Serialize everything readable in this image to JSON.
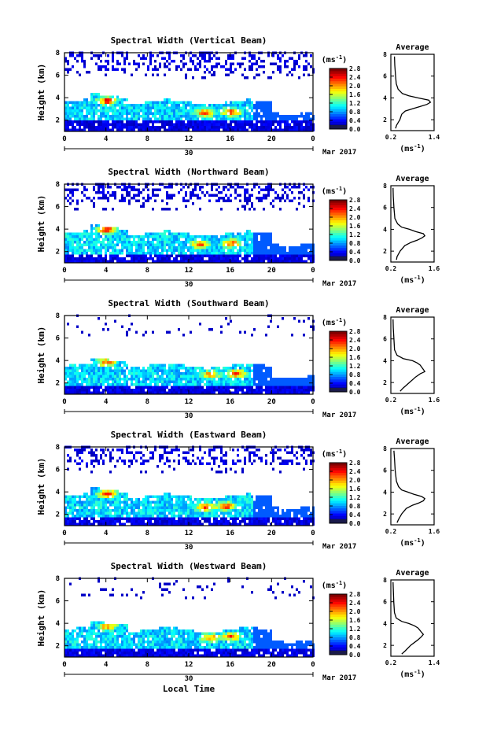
{
  "chart_data": [
    {
      "type": "heatmap",
      "title": "Spectral Width (Vertical Beam)",
      "ylabel": "Height (km)",
      "x_ticks": [
        "0",
        "4",
        "8",
        "12",
        "16",
        "20",
        "0"
      ],
      "y_ticks": [
        "2",
        "4",
        "6",
        "8"
      ],
      "date_marker": "30",
      "date_label": "Mar 2017",
      "ylim": [
        1,
        8
      ],
      "xlim": [
        0,
        24
      ],
      "colorbar": {
        "unit": "(ms",
        "unit_exp": "-1",
        "unit_close": ")",
        "ticks": [
          "0.0",
          "0.4",
          "0.8",
          "1.2",
          "1.6",
          "2.0",
          "2.4",
          "2.8"
        ],
        "range": [
          0,
          2.8
        ]
      },
      "cloud": {
        "top_km": 3.5,
        "bottom_km": 1.6,
        "hotspots": [
          [
            4,
            3.6,
            2.6
          ],
          [
            13.5,
            2.5,
            2.4
          ],
          [
            16,
            2.6,
            2.5
          ]
        ],
        "upper_echo": true
      },
      "average": {
        "title": "Average",
        "x_ticks": [
          "0.2",
          "1.4"
        ],
        "xlim": [
          0.2,
          1.4
        ],
        "y_ticks": [
          "2",
          "4",
          "6",
          "8"
        ],
        "xlabel": "(ms",
        "xlabel_exp": "-1",
        "xlabel_close": ")",
        "profile": [
          [
            1.2,
            0.33
          ],
          [
            1.5,
            0.36
          ],
          [
            2.0,
            0.45
          ],
          [
            2.5,
            0.5
          ],
          [
            2.8,
            0.6
          ],
          [
            3.0,
            0.8
          ],
          [
            3.2,
            1.0
          ],
          [
            3.4,
            1.2
          ],
          [
            3.6,
            1.3
          ],
          [
            3.8,
            1.25
          ],
          [
            4.0,
            0.95
          ],
          [
            4.2,
            0.7
          ],
          [
            4.4,
            0.52
          ],
          [
            4.8,
            0.4
          ],
          [
            5.3,
            0.35
          ],
          [
            6.0,
            0.33
          ],
          [
            7.0,
            0.31
          ],
          [
            7.8,
            0.3
          ]
        ]
      }
    },
    {
      "type": "heatmap",
      "title": "Spectral Width (Northward Beam)",
      "ylabel": "Height (km)",
      "x_ticks": [
        "0",
        "4",
        "8",
        "12",
        "16",
        "20",
        "0"
      ],
      "y_ticks": [
        "2",
        "4",
        "6",
        "8"
      ],
      "date_marker": "30",
      "date_label": "Mar 2017",
      "ylim": [
        1,
        8
      ],
      "xlim": [
        0,
        24
      ],
      "colorbar": {
        "unit": "(ms",
        "unit_exp": "-1",
        "unit_close": ")",
        "ticks": [
          "0.0",
          "0.4",
          "0.8",
          "1.2",
          "1.6",
          "2.0",
          "2.4",
          "2.8"
        ],
        "range": [
          0,
          2.8
        ]
      },
      "cloud": {
        "top_km": 3.5,
        "bottom_km": 1.5,
        "hotspots": [
          [
            4,
            3.8,
            2.7
          ],
          [
            13,
            2.5,
            2.3
          ],
          [
            16,
            2.6,
            2.4
          ]
        ],
        "upper_echo": true
      },
      "average": {
        "title": "Average",
        "x_ticks": [
          "0.2",
          "1.6"
        ],
        "xlim": [
          0.2,
          1.6
        ],
        "y_ticks": [
          "2",
          "4",
          "6",
          "8"
        ],
        "xlabel": "(ms",
        "xlabel_exp": "-1",
        "xlabel_close": ")",
        "profile": [
          [
            1.2,
            0.38
          ],
          [
            1.5,
            0.4
          ],
          [
            2.0,
            0.5
          ],
          [
            2.5,
            0.65
          ],
          [
            2.8,
            0.85
          ],
          [
            3.0,
            1.05
          ],
          [
            3.2,
            1.2
          ],
          [
            3.4,
            1.3
          ],
          [
            3.6,
            1.25
          ],
          [
            3.8,
            1.0
          ],
          [
            4.0,
            0.8
          ],
          [
            4.2,
            0.55
          ],
          [
            4.5,
            0.42
          ],
          [
            5.0,
            0.33
          ],
          [
            6.0,
            0.3
          ],
          [
            7.0,
            0.28
          ],
          [
            7.8,
            0.27
          ]
        ]
      }
    },
    {
      "type": "heatmap",
      "title": "Spectral Width (Southward Beam)",
      "ylabel": "Height (km)",
      "x_ticks": [
        "0",
        "4",
        "8",
        "12",
        "16",
        "20",
        "0"
      ],
      "y_ticks": [
        "2",
        "4",
        "6",
        "8"
      ],
      "date_marker": "30",
      "date_label": "Mar 2017",
      "ylim": [
        1,
        8
      ],
      "xlim": [
        0,
        24
      ],
      "colorbar": {
        "unit": "(ms",
        "unit_exp": "-1",
        "unit_close": ")",
        "ticks": [
          "0.0",
          "0.4",
          "0.8",
          "1.2",
          "1.6",
          "2.0",
          "2.4",
          "2.8"
        ],
        "range": [
          0,
          2.8
        ]
      },
      "cloud": {
        "top_km": 3.4,
        "bottom_km": 1.4,
        "hotspots": [
          [
            4,
            3.7,
            2.3
          ],
          [
            14,
            2.6,
            2.2
          ],
          [
            16.5,
            2.7,
            2.5
          ]
        ],
        "upper_echo": false
      },
      "average": {
        "title": "Average",
        "x_ticks": [
          "0.2",
          "1.6"
        ],
        "xlim": [
          0.2,
          1.6
        ],
        "y_ticks": [
          "2",
          "4",
          "6",
          "8"
        ],
        "xlabel": "(ms",
        "xlabel_exp": "-1",
        "xlabel_close": ")",
        "profile": [
          [
            1.2,
            0.5
          ],
          [
            1.5,
            0.6
          ],
          [
            2.0,
            0.8
          ],
          [
            2.5,
            1.0
          ],
          [
            2.8,
            1.15
          ],
          [
            3.0,
            1.3
          ],
          [
            3.2,
            1.25
          ],
          [
            3.4,
            1.2
          ],
          [
            3.6,
            1.15
          ],
          [
            3.8,
            1.05
          ],
          [
            4.0,
            0.9
          ],
          [
            4.2,
            0.6
          ],
          [
            4.5,
            0.4
          ],
          [
            5.0,
            0.32
          ],
          [
            6.0,
            0.3
          ],
          [
            7.0,
            0.28
          ],
          [
            7.8,
            0.27
          ]
        ]
      }
    },
    {
      "type": "heatmap",
      "title": "Spectral Width (Eastward Beam)",
      "ylabel": "Height (km)",
      "x_ticks": [
        "0",
        "4",
        "8",
        "12",
        "16",
        "20",
        "0"
      ],
      "y_ticks": [
        "2",
        "4",
        "6",
        "8"
      ],
      "date_marker": "30",
      "date_label": "Mar 2017",
      "ylim": [
        1,
        8
      ],
      "xlim": [
        0,
        24
      ],
      "colorbar": {
        "unit": "(ms",
        "unit_exp": "-1",
        "unit_close": ")",
        "ticks": [
          "0.0",
          "0.4",
          "0.8",
          "1.2",
          "1.6",
          "2.0",
          "2.4",
          "2.8"
        ],
        "range": [
          0,
          2.8
        ]
      },
      "cloud": {
        "top_km": 3.5,
        "bottom_km": 1.5,
        "hotspots": [
          [
            4,
            3.7,
            2.6
          ],
          [
            13.5,
            2.5,
            2.4
          ],
          [
            15.5,
            2.6,
            2.6
          ]
        ],
        "upper_echo": true
      },
      "average": {
        "title": "Average",
        "x_ticks": [
          "0.2",
          "1.6"
        ],
        "xlim": [
          0.2,
          1.6
        ],
        "y_ticks": [
          "2",
          "4",
          "6",
          "8"
        ],
        "xlabel": "(ms",
        "xlabel_exp": "-1",
        "xlabel_close": ")",
        "profile": [
          [
            1.2,
            0.4
          ],
          [
            1.5,
            0.45
          ],
          [
            2.0,
            0.55
          ],
          [
            2.5,
            0.7
          ],
          [
            2.8,
            0.9
          ],
          [
            3.0,
            1.1
          ],
          [
            3.2,
            1.25
          ],
          [
            3.4,
            1.3
          ],
          [
            3.6,
            1.2
          ],
          [
            3.8,
            0.95
          ],
          [
            4.0,
            0.75
          ],
          [
            4.2,
            0.55
          ],
          [
            4.5,
            0.45
          ],
          [
            5.0,
            0.38
          ],
          [
            6.0,
            0.34
          ],
          [
            7.0,
            0.32
          ],
          [
            7.8,
            0.3
          ]
        ]
      }
    },
    {
      "type": "heatmap",
      "title": "Spectral Width (Westward Beam)",
      "ylabel": "Height (km)",
      "x_ticks": [
        "0",
        "4",
        "8",
        "12",
        "16",
        "20",
        "0"
      ],
      "y_ticks": [
        "2",
        "4",
        "6",
        "8"
      ],
      "date_marker": "30",
      "date_label": "Mar 2017",
      "xlabel": "Local Time",
      "ylim": [
        1,
        8
      ],
      "xlim": [
        0,
        24
      ],
      "colorbar": {
        "unit": "(ms",
        "unit_exp": "-1",
        "unit_close": ")",
        "ticks": [
          "0.0",
          "0.4",
          "0.8",
          "1.2",
          "1.6",
          "2.0",
          "2.4",
          "2.8"
        ],
        "range": [
          0,
          2.8
        ]
      },
      "cloud": {
        "top_km": 3.3,
        "bottom_km": 1.4,
        "hotspots": [
          [
            4,
            3.6,
            2.2
          ],
          [
            14,
            2.6,
            2.2
          ],
          [
            16,
            2.7,
            2.3
          ]
        ],
        "upper_echo": false
      },
      "average": {
        "title": "Average",
        "x_ticks": [
          "0.2",
          "1.4"
        ],
        "xlim": [
          0.2,
          1.4
        ],
        "y_ticks": [
          "2",
          "4",
          "6",
          "8"
        ],
        "xlabel": "(ms",
        "xlabel_exp": "-1",
        "xlabel_close": ")",
        "profile": [
          [
            1.2,
            0.5
          ],
          [
            1.5,
            0.6
          ],
          [
            2.0,
            0.75
          ],
          [
            2.5,
            0.95
          ],
          [
            2.8,
            1.05
          ],
          [
            3.0,
            1.1
          ],
          [
            3.2,
            1.05
          ],
          [
            3.4,
            1.0
          ],
          [
            3.6,
            0.95
          ],
          [
            3.8,
            0.85
          ],
          [
            4.0,
            0.7
          ],
          [
            4.2,
            0.5
          ],
          [
            4.5,
            0.35
          ],
          [
            5.0,
            0.3
          ],
          [
            6.0,
            0.28
          ],
          [
            7.0,
            0.27
          ],
          [
            7.8,
            0.26
          ]
        ]
      }
    }
  ]
}
